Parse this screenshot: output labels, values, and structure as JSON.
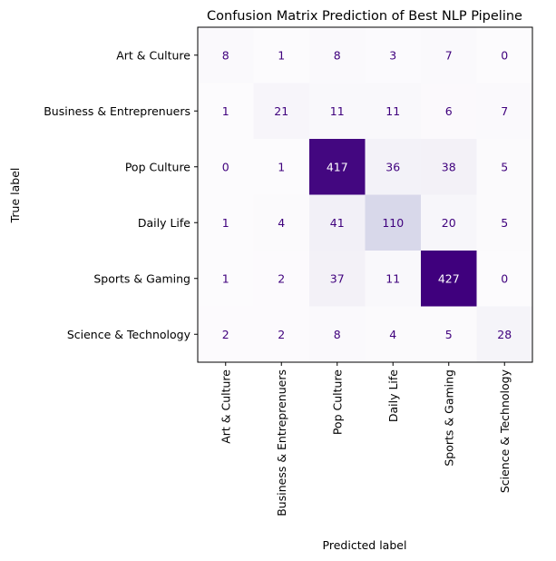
{
  "chart_data": {
    "type": "heatmap",
    "title": "Confusion Matrix Prediction of Best NLP Pipeline",
    "xlabel": "Predicted label",
    "ylabel": "True label",
    "colormap": "Purples",
    "row_labels": [
      "Art & Culture",
      "Business & Entreprenuers",
      "Pop Culture",
      "Daily Life",
      "Sports & Gaming",
      "Science & Technology"
    ],
    "col_labels": [
      "Art & Culture",
      "Business & Entreprenuers",
      "Pop Culture",
      "Daily Life",
      "Sports & Gaming",
      "Science & Technology"
    ],
    "values": [
      [
        8,
        1,
        8,
        3,
        7,
        0
      ],
      [
        1,
        21,
        11,
        11,
        6,
        7
      ],
      [
        0,
        1,
        417,
        36,
        38,
        5
      ],
      [
        1,
        4,
        41,
        110,
        20,
        5
      ],
      [
        1,
        2,
        37,
        11,
        427,
        0
      ],
      [
        2,
        2,
        8,
        4,
        5,
        28
      ]
    ],
    "colors": {
      "cell_min": "#fcfbfd",
      "cell_max": "#3f007d",
      "text_dark": "#3f007d",
      "text_light": "#ffffff"
    }
  }
}
